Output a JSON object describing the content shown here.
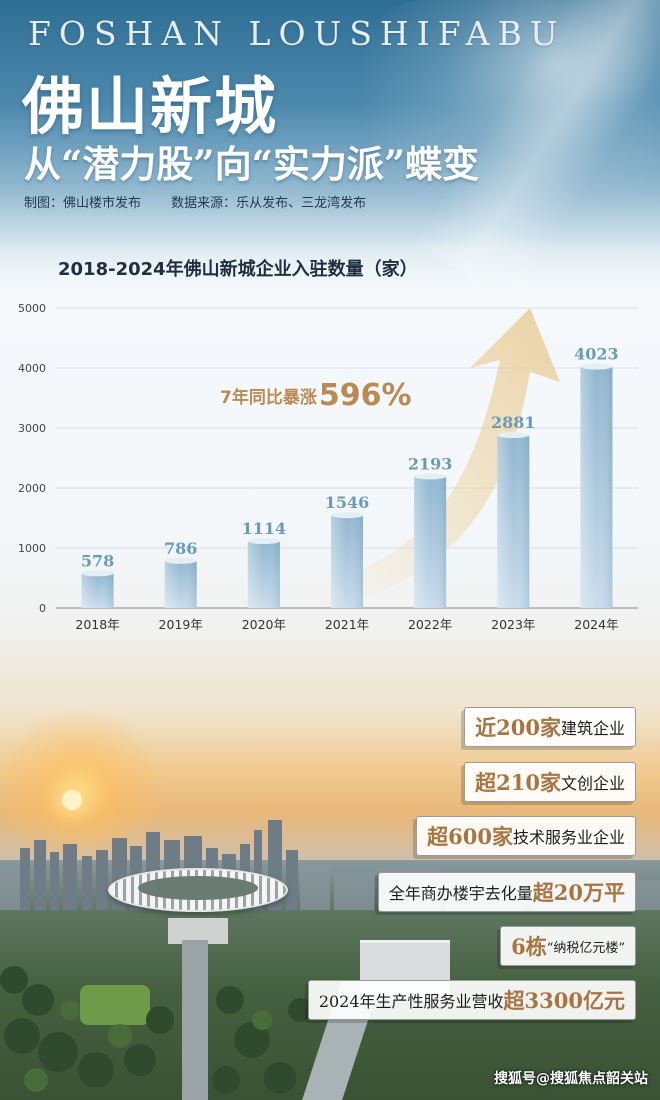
{
  "header": {
    "banner_en": "FOSHAN LOUSHIFABU",
    "title_main": "佛山新城",
    "title_sub": "从“潜力股”向“实力派”蝶变",
    "credit_maker": "制图：佛山楼市发布",
    "credit_source": "数据来源：乐从发布、三龙湾发布"
  },
  "chart_data": {
    "type": "bar",
    "title": "2018-2024年佛山新城企业入驻数量（家）",
    "categories": [
      "2018年",
      "2019年",
      "2020年",
      "2021年",
      "2022年",
      "2023年",
      "2024年"
    ],
    "values": [
      578,
      786,
      1114,
      1546,
      2193,
      2881,
      4023
    ],
    "value_labels": [
      "578",
      "786",
      "1114",
      "1546",
      "2193",
      "2881",
      "4023"
    ],
    "y_ticks": [
      "0",
      "1000",
      "2000",
      "3000",
      "4000",
      "5000"
    ],
    "ylim": [
      0,
      5000
    ],
    "grid": true,
    "bar_color": "#a9c8dc",
    "annotation": {
      "prefix": "7年同比暴涨",
      "value": "596%",
      "color": "#b98a54"
    }
  },
  "stats": [
    {
      "pre": "",
      "hl": "近200家",
      "post": "建筑企业"
    },
    {
      "pre": "",
      "hl": "超210家",
      "post": "文创企业"
    },
    {
      "pre": "",
      "hl": "超600家",
      "post": "技术服务业企业"
    },
    {
      "pre": "全年商办楼宇去化量",
      "hl": "超20万平",
      "post": ""
    },
    {
      "pre": "",
      "hl": "6栋",
      "post": "“纳税亿元楼”"
    },
    {
      "pre": "2024年生产性服务业营收",
      "hl": "超3300亿元",
      "post": ""
    }
  ],
  "footer": {
    "watermark": "搜狐号@搜狐焦点韶关站"
  },
  "colors": {
    "accent_gold": "#a87542",
    "header_blue": "#2f6e94"
  }
}
